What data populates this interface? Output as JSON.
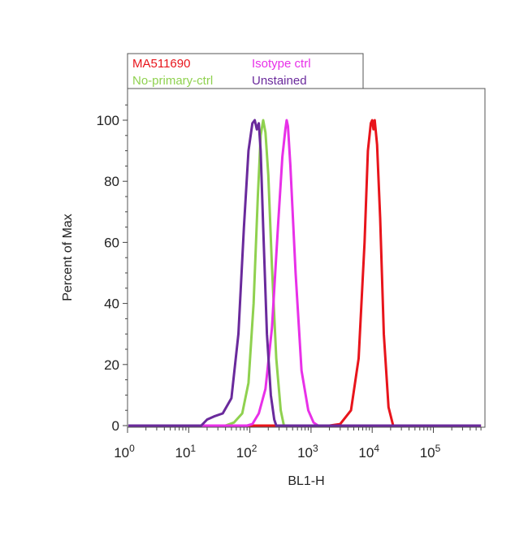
{
  "chart_data": {
    "type": "line",
    "xlabel": "BL1-H",
    "ylabel": "Percent of Max",
    "x_scale": "log",
    "xlim": [
      1,
      600000
    ],
    "ylim": [
      0,
      110
    ],
    "x_ticks": [
      {
        "value": 1,
        "base": "10",
        "exp": "0"
      },
      {
        "value": 10,
        "base": "10",
        "exp": "1"
      },
      {
        "value": 100,
        "base": "10",
        "exp": "2"
      },
      {
        "value": 1000,
        "base": "10",
        "exp": "3"
      },
      {
        "value": 10000,
        "base": "10",
        "exp": "4"
      },
      {
        "value": 100000,
        "base": "10",
        "exp": "5"
      }
    ],
    "y_ticks": [
      {
        "value": 0,
        "label": "0"
      },
      {
        "value": 20,
        "label": "20"
      },
      {
        "value": 40,
        "label": "40"
      },
      {
        "value": 60,
        "label": "60"
      },
      {
        "value": 80,
        "label": "80"
      },
      {
        "value": 100,
        "label": "100"
      }
    ],
    "grid": false,
    "legend_position": "top-left-outside",
    "series": [
      {
        "name": "MA511690",
        "color": "#e8141b",
        "x": [
          1,
          2000,
          3000,
          4500,
          6000,
          7500,
          8500,
          9500,
          10000,
          10500,
          11000,
          12000,
          13500,
          15500,
          18500,
          22000,
          600000
        ],
        "y": [
          0,
          0,
          0.5,
          5,
          22,
          60,
          90,
          99,
          100,
          97,
          100,
          92,
          68,
          30,
          6,
          0,
          0
        ]
      },
      {
        "name": "Isotype ctrl",
        "color": "#e830e8",
        "x": [
          1,
          90,
          110,
          140,
          180,
          230,
          290,
          340,
          380,
          400,
          420,
          460,
          560,
          700,
          900,
          1100,
          1300,
          600000
        ],
        "y": [
          0,
          0,
          0.5,
          4,
          12,
          32,
          66,
          88,
          97,
          100,
          98,
          85,
          50,
          18,
          5,
          1,
          0,
          0
        ]
      },
      {
        "name": "No-primary-ctrl",
        "color": "#8fd14f",
        "x": [
          1,
          40,
          55,
          75,
          95,
          115,
          135,
          150,
          165,
          180,
          200,
          230,
          270,
          320,
          360,
          600000
        ],
        "y": [
          0,
          0,
          1,
          4,
          14,
          40,
          75,
          95,
          100,
          96,
          82,
          52,
          22,
          5,
          0,
          0
        ]
      },
      {
        "name": "Unstained",
        "color": "#6a2a9c",
        "x": [
          1,
          16,
          20,
          26,
          36,
          50,
          65,
          80,
          95,
          110,
          120,
          130,
          140,
          150,
          165,
          190,
          220,
          250,
          270,
          600000
        ],
        "y": [
          0,
          0,
          2,
          3,
          4,
          9,
          30,
          65,
          90,
          99,
          100,
          97,
          99,
          90,
          65,
          30,
          10,
          2,
          0,
          0
        ]
      }
    ]
  }
}
